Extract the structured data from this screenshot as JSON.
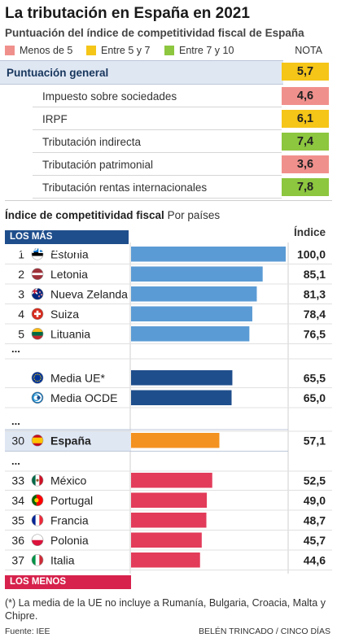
{
  "header": {
    "title": "La tributación en España en 2021",
    "subtitle": "Puntuación del índice de competitividad fiscal de España"
  },
  "legend": {
    "items": [
      {
        "label": "Menos de 5",
        "color": "#f0908c"
      },
      {
        "label": "Entre 5 y 7",
        "color": "#f5c518"
      },
      {
        "label": "Entre 7 y 10",
        "color": "#8dc63f"
      }
    ],
    "nota_label": "NOTA"
  },
  "scores": {
    "general": {
      "label": "Puntuación general",
      "value": "5,7",
      "color": "#f5c518"
    },
    "items": [
      {
        "label": "Impuesto sobre sociedades",
        "value": "4,6",
        "color": "#f0908c"
      },
      {
        "label": "IRPF",
        "value": "6,1",
        "color": "#f5c518"
      },
      {
        "label": "Tributación indirecta",
        "value": "7,4",
        "color": "#8dc63f"
      },
      {
        "label": "Tributación patrimonial",
        "value": "3,6",
        "color": "#f0908c"
      },
      {
        "label": "Tributación rentas internacionales",
        "value": "7,8",
        "color": "#8dc63f"
      }
    ]
  },
  "index_section": {
    "title_bold": "Índice de competitividad fiscal",
    "title_rest": " Por países",
    "top_tag": "LOS MÁS COMPETITIVOS",
    "bottom_tag": "LOS MENOS COMPETITIVOS",
    "value_header": "Índice",
    "ellipsis": "..."
  },
  "colors": {
    "top": "#5b9bd5",
    "average": "#1f4e8c",
    "spain": "#f39220",
    "bottom": "#e23c5a"
  },
  "chart_data": {
    "type": "bar",
    "orientation": "horizontal",
    "xlim": [
      0,
      100
    ],
    "groups": [
      {
        "kind": "top",
        "rows": [
          {
            "rank": "1",
            "name": "Estonia",
            "value": 100.0,
            "label": "100,0",
            "flag": "estonia-flag"
          },
          {
            "rank": "2",
            "name": "Letonia",
            "value": 85.1,
            "label": "85,1",
            "flag": "latvia-flag"
          },
          {
            "rank": "3",
            "name": "Nueva Zelanda",
            "value": 81.3,
            "label": "81,3",
            "flag": "new-zealand-flag"
          },
          {
            "rank": "4",
            "name": "Suiza",
            "value": 78.4,
            "label": "78,4",
            "flag": "switzerland-flag"
          },
          {
            "rank": "5",
            "name": "Lituania",
            "value": 76.5,
            "label": "76,5",
            "flag": "lithuania-flag"
          }
        ]
      },
      {
        "kind": "average",
        "rows": [
          {
            "rank": "",
            "name": "Media UE*",
            "value": 65.5,
            "label": "65,5",
            "flag": "eu-flag"
          },
          {
            "rank": "",
            "name": "Media OCDE",
            "value": 65.0,
            "label": "65,0",
            "flag": "oecd-logo"
          }
        ]
      },
      {
        "kind": "spain",
        "rows": [
          {
            "rank": "30",
            "name": "España",
            "value": 57.1,
            "label": "57,1",
            "flag": "spain-flag"
          }
        ]
      },
      {
        "kind": "bottom",
        "rows": [
          {
            "rank": "33",
            "name": "México",
            "value": 52.5,
            "label": "52,5",
            "flag": "mexico-flag"
          },
          {
            "rank": "34",
            "name": "Portugal",
            "value": 49.0,
            "label": "49,0",
            "flag": "portugal-flag"
          },
          {
            "rank": "35",
            "name": "Francia",
            "value": 48.7,
            "label": "48,7",
            "flag": "france-flag"
          },
          {
            "rank": "36",
            "name": "Polonia",
            "value": 45.7,
            "label": "45,7",
            "flag": "poland-flag"
          },
          {
            "rank": "37",
            "name": "Italia",
            "value": 44.6,
            "label": "44,6",
            "flag": "italy-flag"
          }
        ]
      }
    ]
  },
  "footer": {
    "footnote": "(*) La media de la UE no incluye a Rumanía, Bulgaria, Croacia, Malta y Chipre.",
    "source": "Fuente: IEE",
    "credit": "BELÉN TRINCADO / CINCO DÍAS"
  }
}
